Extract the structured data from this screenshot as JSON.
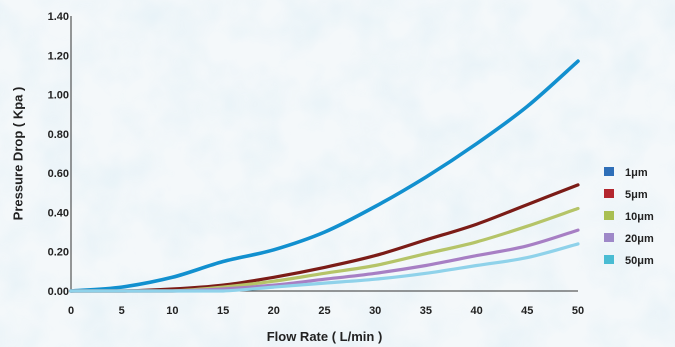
{
  "chart_data": {
    "type": "line",
    "xlabel": "Flow Rate ( L/min )",
    "ylabel": "Pressure Drop ( Kpa )",
    "xlim": [
      0,
      50
    ],
    "ylim": [
      0,
      1.4
    ],
    "x_ticks": [
      "0",
      "5",
      "10",
      "15",
      "20",
      "25",
      "30",
      "35",
      "40",
      "45",
      "50"
    ],
    "y_ticks": [
      "0.00",
      "0.20",
      "0.40",
      "0.60",
      "0.80",
      "1.00",
      "1.20",
      "1.40"
    ],
    "grid": false,
    "legend_position": "right",
    "x": [
      0,
      5,
      10,
      15,
      20,
      25,
      30,
      35,
      40,
      45,
      50
    ],
    "series": [
      {
        "name": "1μm",
        "color": "#1f9ad6",
        "line_color": "#1290cf",
        "legend_color": "#2f6fb8",
        "values": [
          0.0,
          0.02,
          0.07,
          0.15,
          0.21,
          0.3,
          0.43,
          0.58,
          0.75,
          0.94,
          1.17
        ]
      },
      {
        "name": "5μm",
        "color": "#7b1c17",
        "line_color": "#7b1c17",
        "legend_color": "#b3262e",
        "values": [
          0.0,
          0.0,
          0.01,
          0.03,
          0.07,
          0.12,
          0.18,
          0.26,
          0.34,
          0.44,
          0.54
        ]
      },
      {
        "name": "10μm",
        "color": "#b5c468",
        "line_color": "#b5c468",
        "legend_color": "#a9bf52",
        "values": [
          0.0,
          0.0,
          0.0,
          0.02,
          0.05,
          0.09,
          0.13,
          0.19,
          0.25,
          0.33,
          0.42
        ]
      },
      {
        "name": "20μm",
        "color": "#a77fc4",
        "line_color": "#a77fc4",
        "legend_color": "#9e88c8",
        "values": [
          0.0,
          0.0,
          0.0,
          0.01,
          0.03,
          0.06,
          0.09,
          0.13,
          0.18,
          0.23,
          0.31
        ]
      },
      {
        "name": "50μm",
        "color": "#8fd2ea",
        "line_color": "#8fd2ea",
        "legend_color": "#49bcd3",
        "values": [
          0.0,
          0.0,
          0.0,
          0.0,
          0.02,
          0.04,
          0.06,
          0.09,
          0.13,
          0.17,
          0.24
        ]
      }
    ]
  }
}
